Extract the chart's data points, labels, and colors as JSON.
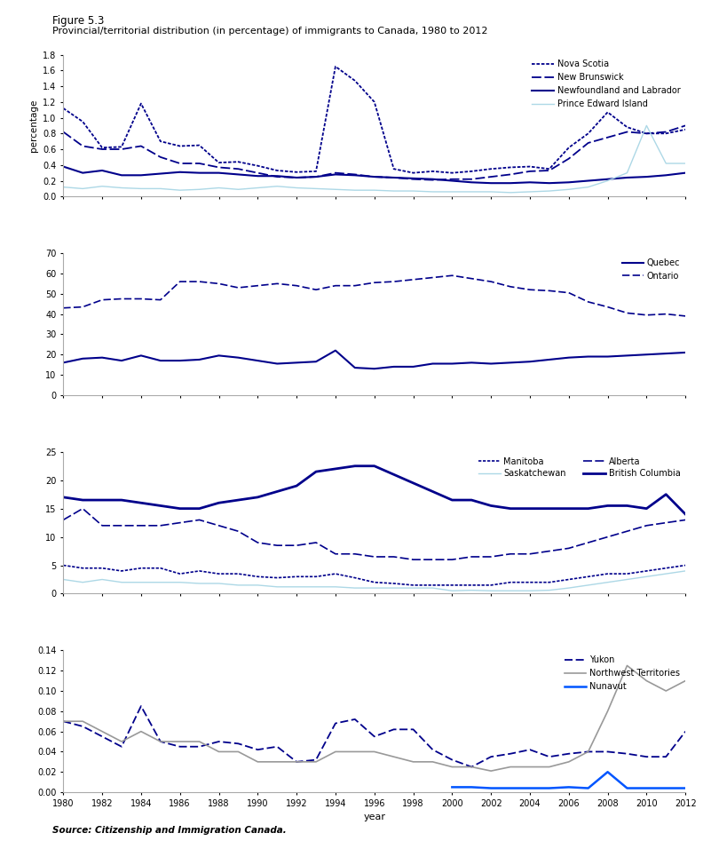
{
  "years": [
    1980,
    1981,
    1982,
    1983,
    1984,
    1985,
    1986,
    1987,
    1988,
    1989,
    1990,
    1991,
    1992,
    1993,
    1994,
    1995,
    1996,
    1997,
    1998,
    1999,
    2000,
    2001,
    2002,
    2003,
    2004,
    2005,
    2006,
    2007,
    2008,
    2009,
    2010,
    2011,
    2012
  ],
  "newfoundland": [
    0.38,
    0.3,
    0.33,
    0.27,
    0.27,
    0.29,
    0.31,
    0.3,
    0.3,
    0.28,
    0.26,
    0.26,
    0.24,
    0.25,
    0.28,
    0.27,
    0.25,
    0.24,
    0.23,
    0.22,
    0.2,
    0.18,
    0.17,
    0.17,
    0.18,
    0.17,
    0.18,
    0.2,
    0.22,
    0.24,
    0.25,
    0.27,
    0.3
  ],
  "pei": [
    0.12,
    0.1,
    0.13,
    0.11,
    0.1,
    0.1,
    0.08,
    0.09,
    0.11,
    0.09,
    0.11,
    0.13,
    0.11,
    0.1,
    0.09,
    0.08,
    0.08,
    0.07,
    0.07,
    0.06,
    0.06,
    0.06,
    0.06,
    0.05,
    0.06,
    0.07,
    0.09,
    0.12,
    0.2,
    0.3,
    0.9,
    0.42,
    0.42
  ],
  "nova_scotia": [
    1.12,
    0.95,
    0.62,
    0.63,
    1.18,
    0.7,
    0.64,
    0.65,
    0.43,
    0.44,
    0.39,
    0.33,
    0.31,
    0.32,
    1.65,
    1.47,
    1.2,
    0.35,
    0.3,
    0.32,
    0.3,
    0.32,
    0.35,
    0.37,
    0.38,
    0.35,
    0.62,
    0.8,
    1.07,
    0.88,
    0.8,
    0.8,
    0.85
  ],
  "new_brunswick": [
    0.82,
    0.64,
    0.6,
    0.6,
    0.64,
    0.5,
    0.42,
    0.42,
    0.37,
    0.35,
    0.3,
    0.25,
    0.24,
    0.25,
    0.3,
    0.28,
    0.25,
    0.24,
    0.22,
    0.21,
    0.22,
    0.22,
    0.25,
    0.28,
    0.32,
    0.33,
    0.48,
    0.68,
    0.75,
    0.82,
    0.8,
    0.82,
    0.9
  ],
  "quebec": [
    16.0,
    18.0,
    18.5,
    17.0,
    19.5,
    17.0,
    17.0,
    17.5,
    19.5,
    18.5,
    17.0,
    15.5,
    16.0,
    16.5,
    22.0,
    13.5,
    13.0,
    14.0,
    14.0,
    15.5,
    15.5,
    16.0,
    15.5,
    16.0,
    16.5,
    17.5,
    18.5,
    19.0,
    19.0,
    19.5,
    20.0,
    20.5,
    21.0
  ],
  "ontario": [
    43.0,
    43.5,
    47.0,
    47.5,
    47.5,
    47.0,
    56.0,
    56.0,
    55.0,
    53.0,
    54.0,
    55.0,
    54.0,
    52.0,
    54.0,
    54.0,
    55.5,
    56.0,
    57.0,
    58.0,
    59.0,
    57.5,
    56.0,
    53.5,
    52.0,
    51.5,
    50.5,
    46.0,
    43.5,
    40.5,
    39.5,
    40.0,
    39.0
  ],
  "manitoba": [
    5.0,
    4.5,
    4.5,
    4.0,
    4.5,
    4.5,
    3.5,
    4.0,
    3.5,
    3.5,
    3.0,
    2.8,
    3.0,
    3.0,
    3.5,
    2.8,
    2.0,
    1.8,
    1.5,
    1.5,
    1.5,
    1.5,
    1.5,
    2.0,
    2.0,
    2.0,
    2.5,
    3.0,
    3.5,
    3.5,
    4.0,
    4.5,
    5.0
  ],
  "saskatchewan": [
    2.5,
    2.0,
    2.5,
    2.0,
    2.0,
    2.0,
    2.0,
    1.8,
    1.8,
    1.5,
    1.5,
    1.2,
    1.2,
    1.2,
    1.2,
    1.0,
    1.0,
    1.0,
    1.0,
    1.0,
    0.5,
    0.6,
    0.5,
    0.5,
    0.5,
    0.6,
    1.0,
    1.5,
    2.0,
    2.5,
    3.0,
    3.5,
    4.0
  ],
  "alberta": [
    13.0,
    15.0,
    12.0,
    12.0,
    12.0,
    12.0,
    12.5,
    13.0,
    12.0,
    11.0,
    9.0,
    8.5,
    8.5,
    9.0,
    7.0,
    7.0,
    6.5,
    6.5,
    6.0,
    6.0,
    6.0,
    6.5,
    6.5,
    7.0,
    7.0,
    7.5,
    8.0,
    9.0,
    10.0,
    11.0,
    12.0,
    12.5,
    13.0
  ],
  "bc": [
    17.0,
    16.5,
    16.5,
    16.5,
    16.0,
    15.5,
    15.0,
    15.0,
    16.0,
    16.5,
    17.0,
    18.0,
    19.0,
    21.5,
    22.0,
    22.5,
    22.5,
    21.0,
    19.5,
    18.0,
    16.5,
    16.5,
    15.5,
    15.0,
    15.0,
    15.0,
    15.0,
    15.0,
    15.5,
    15.5,
    15.0,
    17.5,
    14.0
  ],
  "yukon": [
    0.07,
    0.065,
    0.055,
    0.045,
    0.085,
    0.05,
    0.045,
    0.045,
    0.05,
    0.048,
    0.042,
    0.045,
    0.03,
    0.032,
    0.068,
    0.072,
    0.055,
    0.062,
    0.062,
    0.042,
    0.032,
    0.025,
    0.035,
    0.038,
    0.042,
    0.035,
    0.038,
    0.04,
    0.04,
    0.038,
    0.035,
    0.035,
    0.06
  ],
  "nwt": [
    0.07,
    0.07,
    0.06,
    0.05,
    0.06,
    0.05,
    0.05,
    0.05,
    0.04,
    0.04,
    0.03,
    0.03,
    0.03,
    0.03,
    0.04,
    0.04,
    0.04,
    0.035,
    0.03,
    0.03,
    0.025,
    0.025,
    0.021,
    0.025,
    0.025,
    0.025,
    0.03,
    0.04,
    0.08,
    0.125,
    0.11,
    0.1,
    0.11
  ],
  "nunavut": [
    null,
    null,
    null,
    null,
    null,
    null,
    null,
    null,
    null,
    null,
    null,
    null,
    null,
    null,
    null,
    null,
    null,
    null,
    null,
    null,
    0.005,
    0.005,
    0.004,
    0.004,
    0.004,
    0.004,
    0.005,
    0.004,
    0.02,
    0.004,
    0.004,
    0.004,
    0.004
  ],
  "title_main": "Figure 5.3",
  "title_sub": "Provincial/territorial distribution (in percentage) of immigrants to Canada, 1980 to 2012",
  "ylabel": "percentage",
  "xlabel": "year",
  "source": "Source: Citizenship and Immigration Canada.",
  "dark_navy": "#00008B",
  "light_blue": "#ADD8E6",
  "grey": "#999999"
}
